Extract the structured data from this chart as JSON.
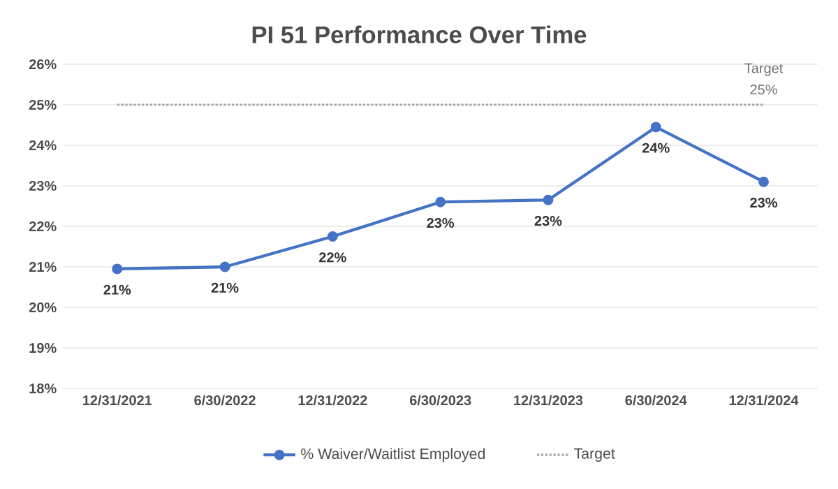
{
  "chart_data": {
    "type": "line",
    "title": "PI 51 Performance Over Time",
    "categories": [
      "12/31/2021",
      "6/30/2022",
      "12/31/2022",
      "6/30/2023",
      "12/31/2023",
      "6/30/2024",
      "12/31/2024"
    ],
    "series": [
      {
        "name": "% Waiver/Waitlist Employed",
        "color": "#4472c4",
        "marker": "circle",
        "line_style": "solid",
        "values": [
          20.95,
          21.0,
          21.75,
          22.6,
          22.65,
          24.45,
          23.1
        ],
        "value_labels": [
          "21%",
          "21%",
          "22%",
          "23%",
          "23%",
          "24%",
          "23%"
        ]
      },
      {
        "name": "Target",
        "color": "#a5a5a5",
        "marker": "none",
        "line_style": "dotted",
        "values": [
          25,
          25,
          25,
          25,
          25,
          25,
          25
        ],
        "value_labels": [
          null,
          null,
          null,
          null,
          null,
          null,
          "25%"
        ]
      }
    ],
    "annotations": [
      {
        "text": "Target",
        "x": "12/31/2024",
        "y": 25
      }
    ],
    "ylim": [
      18,
      26
    ],
    "yticks": [
      {
        "value": 18,
        "label": "18%"
      },
      {
        "value": 19,
        "label": "19%"
      },
      {
        "value": 20,
        "label": "20%"
      },
      {
        "value": 21,
        "label": "21%"
      },
      {
        "value": 22,
        "label": "22%"
      },
      {
        "value": 23,
        "label": "23%"
      },
      {
        "value": 24,
        "label": "24%"
      },
      {
        "value": 25,
        "label": "25%"
      },
      {
        "value": 26,
        "label": "26%"
      }
    ],
    "grid": "y",
    "legend": "bottom"
  }
}
